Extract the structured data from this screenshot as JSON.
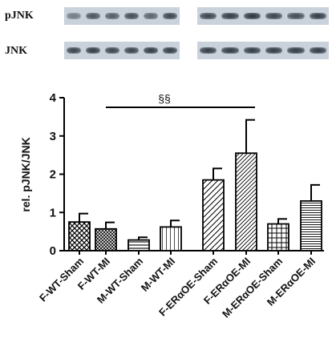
{
  "blot": {
    "row1_label": "pJNK",
    "row2_label": "JNK"
  },
  "chart_data": {
    "type": "bar",
    "categories": [
      "F-WT-Sham",
      "F-WT-MI",
      "M-WT-Sham",
      "M-WT-MI",
      "F-ERαOE-Sham",
      "F-ERαOE-MI",
      "M-ERαOE-Sham",
      "M-ERαOE-MI"
    ],
    "values": [
      0.75,
      0.57,
      0.28,
      0.62,
      1.85,
      2.55,
      0.7,
      1.3
    ],
    "errors": [
      0.22,
      0.17,
      0.07,
      0.17,
      0.3,
      0.87,
      0.13,
      0.42
    ],
    "patterns": [
      "crosshatch",
      "crosshatch-fine",
      "horizontal",
      "vertical",
      "diagonal",
      "diagonal-dense",
      "grid",
      "horizontal-dense"
    ],
    "ylabel": "rel. pJNK/JNK",
    "xlabel": "",
    "ylim": [
      0,
      4
    ],
    "yticks": [
      0,
      1,
      2,
      3,
      4
    ],
    "grid": false,
    "annotation": {
      "text": "§§",
      "from_category": 1,
      "to_category": 5
    }
  }
}
